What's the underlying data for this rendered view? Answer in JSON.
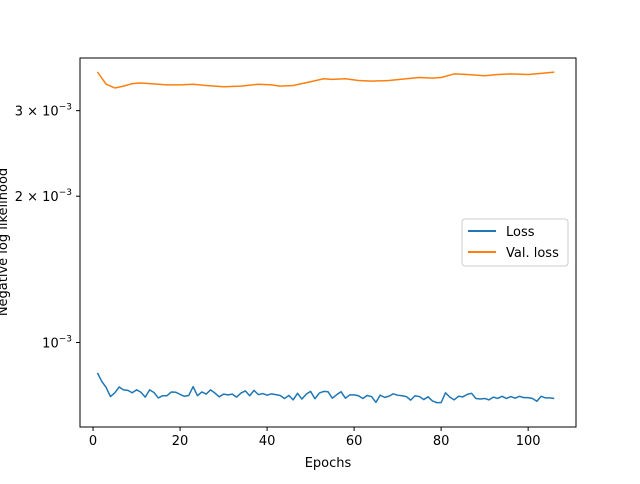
{
  "chart_data": {
    "type": "line",
    "title": "",
    "xlabel": "Epochs",
    "ylabel": "Negative log likelihood",
    "yscale": "log",
    "xlim": [
      -3,
      111
    ],
    "ylim": [
      0.00067,
      0.00385
    ],
    "grid": false,
    "legend_position": "center-right",
    "x_ticks": [
      0,
      20,
      40,
      60,
      80,
      100
    ],
    "x_tick_labels": [
      "0",
      "20",
      "40",
      "60",
      "80",
      "100"
    ],
    "y_ticks": [
      0.001,
      0.002,
      0.003
    ],
    "y_tick_labels": [
      {
        "base": "10",
        "exp": "−3"
      },
      {
        "base": "2 × 10",
        "exp": "−3"
      },
      {
        "base": "3 × 10",
        "exp": "−3"
      }
    ],
    "series": [
      {
        "name": "Loss",
        "color": "#1f77b4",
        "x": [
          1,
          2,
          3,
          4,
          5,
          6,
          7,
          8,
          9,
          10,
          11,
          12,
          13,
          14,
          15,
          16,
          17,
          18,
          19,
          20,
          21,
          22,
          23,
          24,
          25,
          26,
          27,
          28,
          29,
          30,
          31,
          32,
          33,
          34,
          35,
          36,
          37,
          38,
          39,
          40,
          41,
          42,
          43,
          44,
          45,
          46,
          47,
          48,
          49,
          50,
          51,
          52,
          53,
          54,
          55,
          56,
          57,
          58,
          59,
          60,
          61,
          62,
          63,
          64,
          65,
          66,
          67,
          68,
          69,
          70,
          71,
          72,
          73,
          74,
          75,
          76,
          77,
          78,
          79,
          80,
          81,
          82,
          83,
          84,
          85,
          86,
          87,
          88,
          89,
          90,
          91,
          92,
          93,
          94,
          95,
          96,
          97,
          98,
          99,
          100,
          101,
          102,
          103,
          104,
          105,
          106
        ],
        "values": [
          0.000866,
          0.000832,
          0.000808,
          0.000774,
          0.000788,
          0.00081,
          0.000799,
          0.000797,
          0.000788,
          0.000799,
          0.00079,
          0.000772,
          0.000799,
          0.000789,
          0.000769,
          0.000777,
          0.000777,
          0.000791,
          0.00079,
          0.000782,
          0.000775,
          0.000778,
          0.000811,
          0.000777,
          0.000791,
          0.000783,
          0.000799,
          0.000787,
          0.000773,
          0.000783,
          0.00078,
          0.000783,
          0.000772,
          0.000787,
          0.000795,
          0.000777,
          0.000797,
          0.000781,
          0.000785,
          0.000779,
          0.000784,
          0.000781,
          0.000778,
          0.000767,
          0.000778,
          0.000762,
          0.000786,
          0.000765,
          0.000783,
          0.000793,
          0.000766,
          0.000787,
          0.000793,
          0.000792,
          0.000768,
          0.000781,
          0.000792,
          0.000768,
          0.00078,
          0.00078,
          0.000777,
          0.000767,
          0.000778,
          0.000774,
          0.000753,
          0.000779,
          0.000771,
          0.000775,
          0.000784,
          0.000779,
          0.000777,
          0.000774,
          0.000761,
          0.000777,
          0.000774,
          0.000763,
          0.000773,
          0.000758,
          0.000752,
          0.000752,
          0.000788,
          0.000772,
          0.000762,
          0.000775,
          0.000773,
          0.000782,
          0.000786,
          0.000767,
          0.000765,
          0.000767,
          0.000762,
          0.000772,
          0.000767,
          0.000775,
          0.000767,
          0.000774,
          0.000768,
          0.000775,
          0.00077,
          0.00077,
          0.000767,
          0.000757,
          0.000775,
          0.000769,
          0.000769,
          0.000767
        ]
      },
      {
        "name": "Val. loss",
        "color": "#ff7f0e",
        "x": [
          1,
          3,
          5,
          7,
          9,
          11,
          13,
          15,
          17,
          20,
          23,
          26,
          30,
          34,
          38,
          41,
          43,
          46,
          50,
          53,
          55,
          58,
          61,
          64,
          68,
          72,
          75,
          78,
          80,
          83,
          86,
          90,
          93,
          96,
          100,
          103,
          106
        ],
        "values": [
          0.003605,
          0.0034,
          0.00334,
          0.00337,
          0.00341,
          0.00342,
          0.00341,
          0.0034,
          0.00339,
          0.00339,
          0.0034,
          0.00338,
          0.00336,
          0.00337,
          0.0034,
          0.00339,
          0.00337,
          0.00338,
          0.00344,
          0.00349,
          0.00348,
          0.00349,
          0.00346,
          0.00345,
          0.00346,
          0.00349,
          0.00351,
          0.0035,
          0.00351,
          0.00357,
          0.00356,
          0.00354,
          0.00356,
          0.00357,
          0.00356,
          0.00358,
          0.0036
        ]
      }
    ]
  }
}
